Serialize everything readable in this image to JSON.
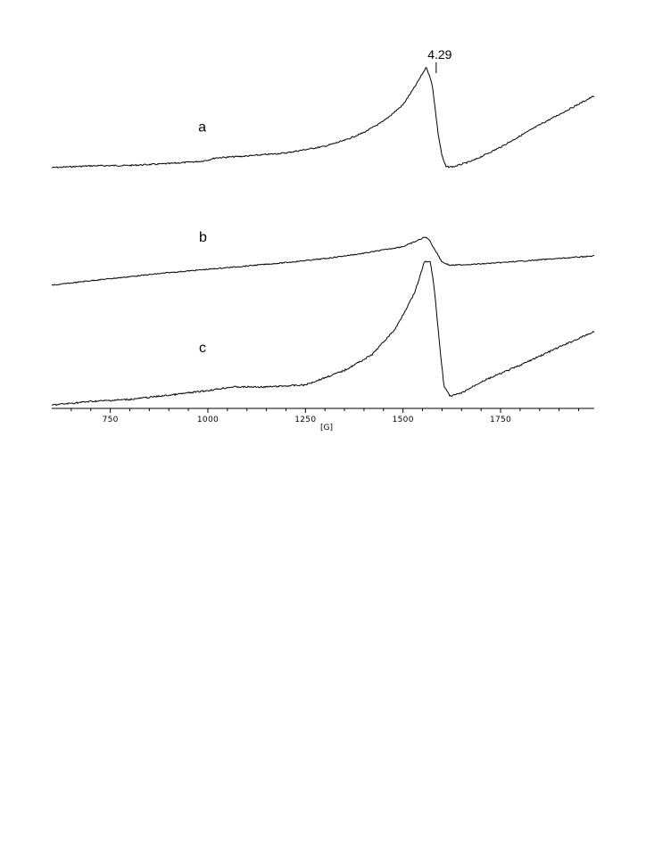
{
  "chart_data": {
    "type": "line",
    "xlabel": "[G]",
    "ylabel": "",
    "xlim": [
      600,
      1990
    ],
    "x_ticks": [
      750,
      1000,
      1250,
      1500,
      1750
    ],
    "grid": false,
    "legend": "none",
    "annotation": {
      "text": "4.29",
      "x": 1585
    },
    "series": [
      {
        "name": "a",
        "color": "#000000",
        "x": [
          600,
          700,
          800,
          900,
          980,
          1000,
          1020,
          1100,
          1200,
          1300,
          1350,
          1400,
          1450,
          1500,
          1530,
          1560,
          1575,
          1590,
          1600,
          1610,
          1630,
          1680,
          1750,
          1850,
          1990
        ],
        "y": [
          0.04,
          0.08,
          0.09,
          0.13,
          0.18,
          0.21,
          0.26,
          0.3,
          0.37,
          0.52,
          0.65,
          0.83,
          1.08,
          1.45,
          1.85,
          2.3,
          1.9,
          0.8,
          0.3,
          0.06,
          0.06,
          0.2,
          0.5,
          1.0,
          1.65
        ]
      },
      {
        "name": "b",
        "color": "#000000",
        "x": [
          600,
          700,
          800,
          900,
          1000,
          1100,
          1200,
          1300,
          1400,
          1450,
          1500,
          1530,
          1555,
          1565,
          1580,
          1600,
          1620,
          1700,
          1800,
          1990
        ],
        "y": [
          0.0,
          0.07,
          0.13,
          0.19,
          0.24,
          0.29,
          0.34,
          0.4,
          0.48,
          0.53,
          0.58,
          0.65,
          0.72,
          0.7,
          0.55,
          0.35,
          0.3,
          0.32,
          0.36,
          0.44
        ]
      },
      {
        "name": "c",
        "color": "#000000",
        "x": [
          600,
          700,
          800,
          900,
          1000,
          1060,
          1150,
          1250,
          1350,
          1420,
          1480,
          1530,
          1555,
          1570,
          1580,
          1595,
          1605,
          1620,
          1650,
          1700,
          1800,
          1900,
          1990
        ],
        "y": [
          0.03,
          0.1,
          0.14,
          0.22,
          0.31,
          0.38,
          0.38,
          0.42,
          0.7,
          1.0,
          1.5,
          2.2,
          2.8,
          2.8,
          2.3,
          1.1,
          0.4,
          0.2,
          0.26,
          0.48,
          0.8,
          1.15,
          1.45
        ]
      }
    ]
  }
}
